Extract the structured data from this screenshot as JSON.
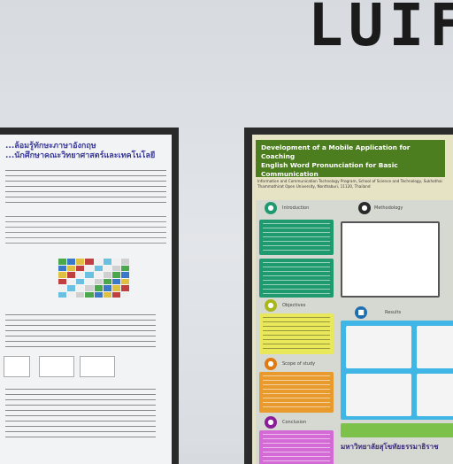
{
  "wall_sign": {
    "letters": [
      "L",
      "U",
      "I",
      "F"
    ]
  },
  "left_poster": {
    "title_line_1": "...ล้อมรู้ทักษะภาษาอังกฤษ",
    "title_line_2": "...นักศึกษาคณะวิทยาศาสตร์และเทคโนโลยี"
  },
  "right_poster": {
    "title_line_1": "Development of a Mobile Application for Coaching",
    "title_line_2": "English Word Pronunciation for Basic Communication",
    "authors": "Information and Communication Technology Program, School of Science and Technology, Sukhothai Thammathirat Open University, Nonthaburi, 11120, Thailand",
    "sections": {
      "intro": "Introduction",
      "method": "Methodology",
      "objectives": "Objectives",
      "results": "Results",
      "scope": "Scope of study",
      "conclusion": "Conclusion"
    },
    "footer_banner": "มหาวิทยาลัยสุโขทัยธรรมาธิราช"
  },
  "colors": {
    "green_header": "#4c7d1f",
    "teal_box": "#1e9a6e",
    "yellow_box": "#e8e85a",
    "orange_box": "#e89a2c",
    "purple_box": "#d46ad6",
    "blue_frame": "#3fb6e6"
  }
}
